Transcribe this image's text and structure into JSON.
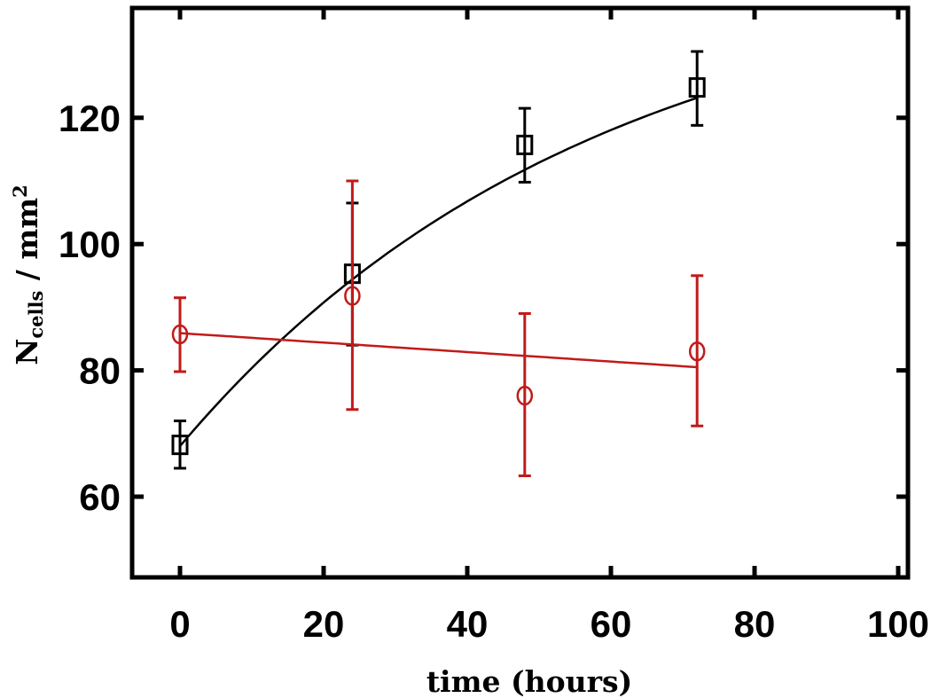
{
  "chart_data": {
    "type": "scatter",
    "title": "",
    "xlabel": "time (hours)",
    "ylabel_main": "N",
    "ylabel_sub": "cells",
    "ylabel_rest": " / mm",
    "ylabel_sup": "2",
    "xlim": [
      -8,
      103
    ],
    "ylim": [
      47,
      140
    ],
    "xticks": [
      0,
      20,
      40,
      60,
      80,
      100
    ],
    "yticks": [
      60,
      80,
      100,
      120
    ],
    "xtick_labels": [
      "0",
      "20",
      "40",
      "60",
      "80",
      "100"
    ],
    "ytick_labels": [
      "60",
      "80",
      "100",
      "120"
    ],
    "grid": false,
    "series": [
      {
        "name": "squares",
        "marker": "square",
        "color": "#000000",
        "x": [
          0,
          24,
          48,
          72
        ],
        "y": [
          68.2,
          95.3,
          115.7,
          124.8
        ],
        "err_low": [
          64.5,
          84.0,
          109.8,
          118.8
        ],
        "err_high": [
          72.0,
          106.5,
          121.5,
          130.5
        ],
        "fit": {
          "kind": "exponential_saturation",
          "asymptote": 145,
          "amplitude": 77,
          "rate": 0.0175,
          "x_range": [
            0,
            72
          ]
        }
      },
      {
        "name": "circles",
        "marker": "circle",
        "color": "#c21a1a",
        "x": [
          0,
          24,
          48,
          72
        ],
        "y": [
          85.7,
          91.8,
          76.0,
          83.0
        ],
        "err_low": [
          79.8,
          73.8,
          63.3,
          71.2
        ],
        "err_high": [
          91.5,
          110.0,
          89.0,
          95.0
        ],
        "fit": {
          "kind": "linear",
          "intercept": 85.9,
          "slope": -0.075,
          "x_range": [
            0,
            72
          ]
        }
      }
    ]
  }
}
